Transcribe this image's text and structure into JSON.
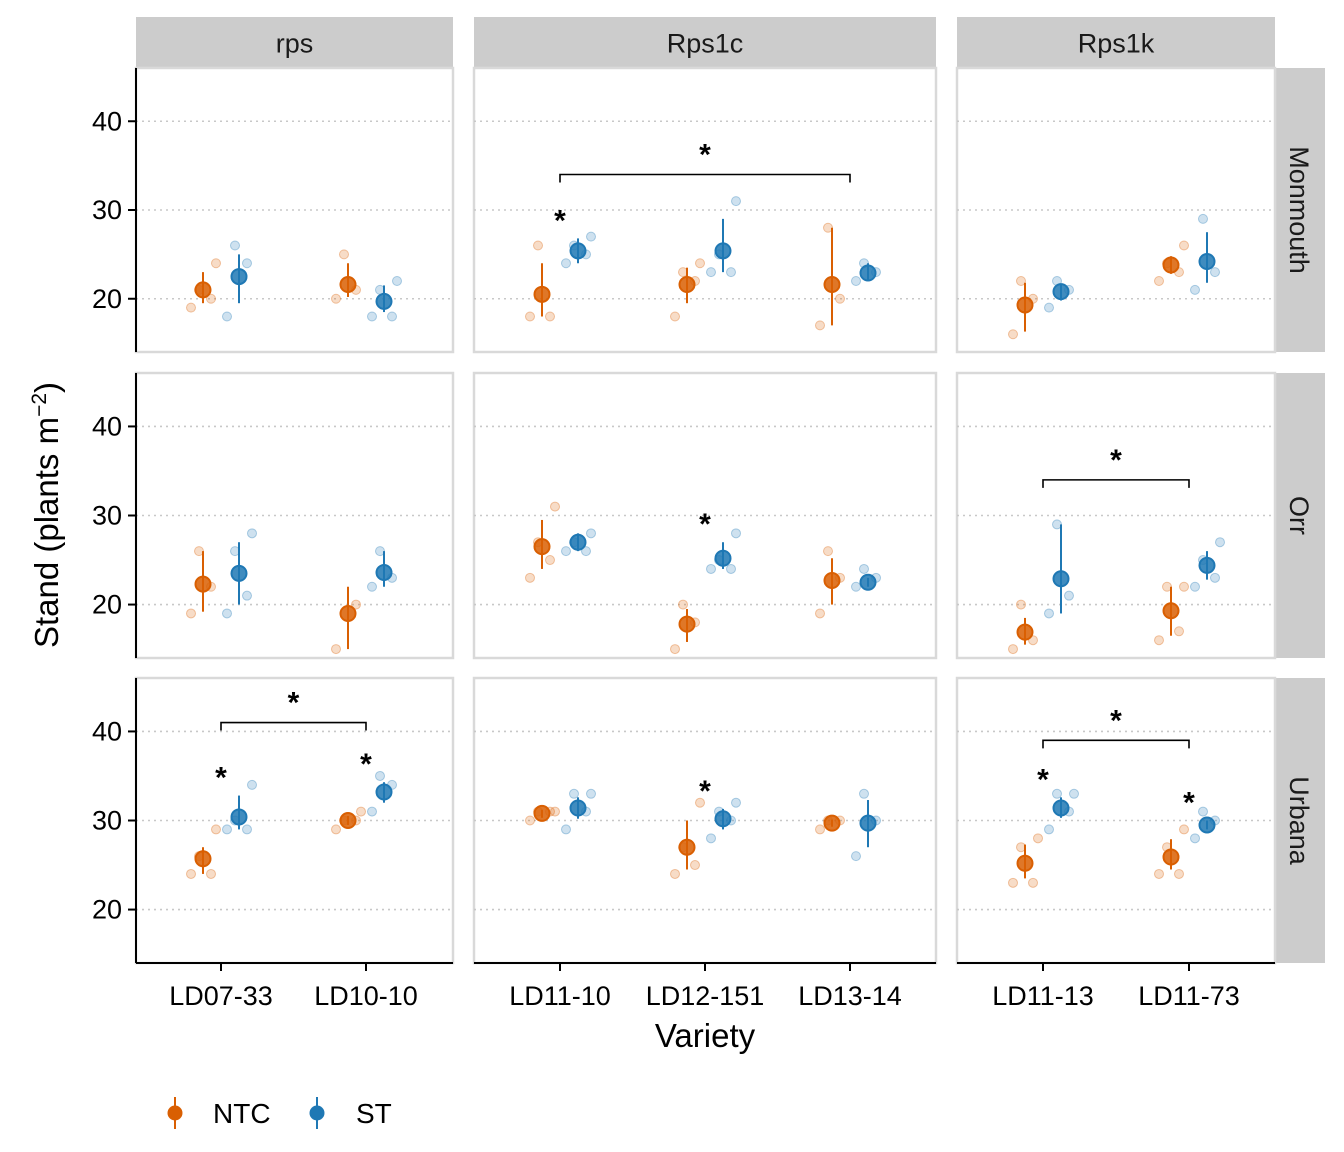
{
  "chart_data": {
    "type": "scatter",
    "xlabel": "Variety",
    "ylabel_main": "Stand (plants m",
    "ylabel_unit_sup": "−2",
    "ylabel_close": ")",
    "ylim": [
      14,
      46
    ],
    "yticks": [
      "20",
      "30",
      "40"
    ],
    "grid": "horizontal dotted at 20, 30, 40",
    "columns": [
      {
        "label": "rps",
        "varieties": [
          "LD07-33",
          "LD10-10"
        ]
      },
      {
        "label": "Rps1c",
        "varieties": [
          "LD11-10",
          "LD12-151",
          "LD13-14"
        ]
      },
      {
        "label": "Rps1k",
        "varieties": [
          "LD11-13",
          "LD11-73"
        ]
      }
    ],
    "rows": [
      "Monmouth",
      "Orr",
      "Urbana"
    ],
    "legend": {
      "placement": "bottom-left",
      "items": [
        {
          "key": "NTC",
          "label": "NTC",
          "color": "#D95F02"
        },
        {
          "key": "ST",
          "label": "ST",
          "color": "#1F78B4"
        }
      ]
    },
    "significance_marker": "*",
    "panels": [
      {
        "row": "Monmouth",
        "column": "rps",
        "groups": [
          {
            "variety": "LD07-33",
            "treatment": "NTC",
            "mean": 21.0,
            "lo": 19.5,
            "hi": 23.0,
            "raw": [
              19,
              20,
              21,
              24
            ],
            "star": false
          },
          {
            "variety": "LD07-33",
            "treatment": "ST",
            "mean": 22.5,
            "lo": 19.5,
            "hi": 25.0,
            "raw": [
              18,
              24,
              26
            ],
            "star": false
          },
          {
            "variety": "LD10-10",
            "treatment": "NTC",
            "mean": 21.6,
            "lo": 20.2,
            "hi": 24.0,
            "raw": [
              20,
              21,
              25
            ],
            "star": false
          },
          {
            "variety": "LD10-10",
            "treatment": "ST",
            "mean": 19.7,
            "lo": 18.5,
            "hi": 21.5,
            "raw": [
              18,
              18,
              21,
              22
            ],
            "star": false
          }
        ],
        "brackets": []
      },
      {
        "row": "Monmouth",
        "column": "Rps1c",
        "groups": [
          {
            "variety": "LD11-10",
            "treatment": "NTC",
            "mean": 20.5,
            "lo": 18.0,
            "hi": 24.0,
            "raw": [
              18,
              18,
              26
            ],
            "star": false
          },
          {
            "variety": "LD11-10",
            "treatment": "ST",
            "mean": 25.4,
            "lo": 24.0,
            "hi": 26.8,
            "raw": [
              24,
              25,
              26,
              27
            ],
            "star": true
          },
          {
            "variety": "LD12-151",
            "treatment": "NTC",
            "mean": 21.6,
            "lo": 19.5,
            "hi": 23.5,
            "raw": [
              18,
              22,
              23,
              24
            ],
            "star": false
          },
          {
            "variety": "LD12-151",
            "treatment": "ST",
            "mean": 25.4,
            "lo": 23.0,
            "hi": 29.0,
            "raw": [
              23,
              23,
              25,
              31
            ],
            "star": false
          },
          {
            "variety": "LD13-14",
            "treatment": "NTC",
            "mean": 21.6,
            "lo": 17.0,
            "hi": 28.0,
            "raw": [
              17,
              20,
              28
            ],
            "star": false
          },
          {
            "variety": "LD13-14",
            "treatment": "ST",
            "mean": 22.9,
            "lo": 22.0,
            "hi": 24.0,
            "raw": [
              22,
              23,
              24
            ],
            "star": false
          }
        ],
        "brackets": [
          {
            "from": "LD11-10",
            "to": "LD13-14",
            "y": 34.0
          }
        ]
      },
      {
        "row": "Monmouth",
        "column": "Rps1k",
        "groups": [
          {
            "variety": "LD11-13",
            "treatment": "NTC",
            "mean": 19.3,
            "lo": 16.3,
            "hi": 21.8,
            "raw": [
              16,
              20,
              22
            ],
            "star": false
          },
          {
            "variety": "LD11-13",
            "treatment": "ST",
            "mean": 20.8,
            "lo": 19.8,
            "hi": 21.6,
            "raw": [
              19,
              21,
              22
            ],
            "star": false
          },
          {
            "variety": "LD11-73",
            "treatment": "NTC",
            "mean": 23.8,
            "lo": 22.8,
            "hi": 24.8,
            "raw": [
              22,
              23,
              24,
              26
            ],
            "star": false
          },
          {
            "variety": "LD11-73",
            "treatment": "ST",
            "mean": 24.2,
            "lo": 21.8,
            "hi": 27.5,
            "raw": [
              21,
              23,
              29
            ],
            "star": false
          }
        ],
        "brackets": []
      },
      {
        "row": "Orr",
        "column": "rps",
        "groups": [
          {
            "variety": "LD07-33",
            "treatment": "NTC",
            "mean": 22.3,
            "lo": 19.2,
            "hi": 26.0,
            "raw": [
              19,
              22,
              26
            ],
            "star": false
          },
          {
            "variety": "LD07-33",
            "treatment": "ST",
            "mean": 23.5,
            "lo": 20.0,
            "hi": 27.0,
            "raw": [
              19,
              21,
              26,
              28
            ],
            "star": false
          },
          {
            "variety": "LD10-10",
            "treatment": "NTC",
            "mean": 19.0,
            "lo": 15.0,
            "hi": 22.0,
            "raw": [
              15,
              20
            ],
            "star": false
          },
          {
            "variety": "LD10-10",
            "treatment": "ST",
            "mean": 23.6,
            "lo": 22.0,
            "hi": 26.0,
            "raw": [
              22,
              23,
              26
            ],
            "star": false
          }
        ],
        "brackets": []
      },
      {
        "row": "Orr",
        "column": "Rps1c",
        "groups": [
          {
            "variety": "LD11-10",
            "treatment": "NTC",
            "mean": 26.5,
            "lo": 24.0,
            "hi": 29.5,
            "raw": [
              23,
              25,
              27,
              31
            ],
            "star": false
          },
          {
            "variety": "LD11-10",
            "treatment": "ST",
            "mean": 27.0,
            "lo": 26.0,
            "hi": 28.0,
            "raw": [
              26,
              26,
              27,
              28
            ],
            "star": false
          },
          {
            "variety": "LD12-151",
            "treatment": "NTC",
            "mean": 17.8,
            "lo": 15.8,
            "hi": 19.5,
            "raw": [
              15,
              18,
              20
            ],
            "star": false
          },
          {
            "variety": "LD12-151",
            "treatment": "ST",
            "mean": 25.2,
            "lo": 24.0,
            "hi": 27.0,
            "raw": [
              24,
              24,
              25,
              28
            ],
            "star": true
          },
          {
            "variety": "LD13-14",
            "treatment": "NTC",
            "mean": 22.7,
            "lo": 20.0,
            "hi": 25.2,
            "raw": [
              19,
              23,
              26
            ],
            "star": false
          },
          {
            "variety": "LD13-14",
            "treatment": "ST",
            "mean": 22.5,
            "lo": 22.0,
            "hi": 23.0,
            "raw": [
              22,
              23,
              24
            ],
            "star": false
          }
        ],
        "brackets": []
      },
      {
        "row": "Orr",
        "column": "Rps1k",
        "groups": [
          {
            "variety": "LD11-13",
            "treatment": "NTC",
            "mean": 16.9,
            "lo": 15.5,
            "hi": 18.5,
            "raw": [
              15,
              16,
              20
            ],
            "star": false
          },
          {
            "variety": "LD11-13",
            "treatment": "ST",
            "mean": 22.9,
            "lo": 19.0,
            "hi": 29.0,
            "raw": [
              19,
              21,
              29
            ],
            "star": false
          },
          {
            "variety": "LD11-73",
            "treatment": "NTC",
            "mean": 19.3,
            "lo": 16.5,
            "hi": 22.0,
            "raw": [
              16,
              17,
              22,
              22
            ],
            "star": false
          },
          {
            "variety": "LD11-73",
            "treatment": "ST",
            "mean": 24.4,
            "lo": 22.8,
            "hi": 26.0,
            "raw": [
              22,
              23,
              25,
              27
            ],
            "star": false
          }
        ],
        "brackets": [
          {
            "from": "LD11-13",
            "to": "LD11-73",
            "y": 34.0
          }
        ]
      },
      {
        "row": "Urbana",
        "column": "rps",
        "groups": [
          {
            "variety": "LD07-33",
            "treatment": "NTC",
            "mean": 25.7,
            "lo": 24.0,
            "hi": 27.0,
            "raw": [
              24,
              24,
              26,
              29
            ],
            "star": false
          },
          {
            "variety": "LD07-33",
            "treatment": "ST",
            "mean": 30.4,
            "lo": 29.0,
            "hi": 32.8,
            "raw": [
              29,
              29,
              30,
              34
            ],
            "star": true
          },
          {
            "variety": "LD10-10",
            "treatment": "NTC",
            "mean": 30.0,
            "lo": 29.5,
            "hi": 30.5,
            "raw": [
              29,
              30,
              30,
              31
            ],
            "star": false
          },
          {
            "variety": "LD10-10",
            "treatment": "ST",
            "mean": 33.2,
            "lo": 32.0,
            "hi": 34.3,
            "raw": [
              31,
              34,
              35
            ],
            "star": true
          }
        ],
        "brackets": [
          {
            "from": "LD07-33",
            "to": "LD10-10",
            "y": 41.0
          }
        ]
      },
      {
        "row": "Urbana",
        "column": "Rps1c",
        "groups": [
          {
            "variety": "LD11-10",
            "treatment": "NTC",
            "mean": 30.8,
            "lo": 30.3,
            "hi": 31.2,
            "raw": [
              30,
              31,
              31,
              31
            ],
            "star": false
          },
          {
            "variety": "LD11-10",
            "treatment": "ST",
            "mean": 31.4,
            "lo": 30.2,
            "hi": 32.6,
            "raw": [
              29,
              31,
              33,
              33
            ],
            "star": false
          },
          {
            "variety": "LD12-151",
            "treatment": "NTC",
            "mean": 27.0,
            "lo": 24.5,
            "hi": 30.0,
            "raw": [
              24,
              25,
              27,
              32
            ],
            "star": false
          },
          {
            "variety": "LD12-151",
            "treatment": "ST",
            "mean": 30.2,
            "lo": 29.0,
            "hi": 31.3,
            "raw": [
              28,
              30,
              31,
              32
            ],
            "star": true
          },
          {
            "variety": "LD13-14",
            "treatment": "NTC",
            "mean": 29.7,
            "lo": 29.3,
            "hi": 30.1,
            "raw": [
              29,
              30,
              30
            ],
            "star": false
          },
          {
            "variety": "LD13-14",
            "treatment": "ST",
            "mean": 29.7,
            "lo": 27.0,
            "hi": 32.3,
            "raw": [
              26,
              30,
              33
            ],
            "star": false
          }
        ],
        "brackets": []
      },
      {
        "row": "Urbana",
        "column": "Rps1k",
        "groups": [
          {
            "variety": "LD11-13",
            "treatment": "NTC",
            "mean": 25.2,
            "lo": 23.5,
            "hi": 27.3,
            "raw": [
              23,
              23,
              27,
              28
            ],
            "star": false
          },
          {
            "variety": "LD11-13",
            "treatment": "ST",
            "mean": 31.4,
            "lo": 30.3,
            "hi": 32.6,
            "raw": [
              29,
              31,
              33,
              33
            ],
            "star": true
          },
          {
            "variety": "LD11-73",
            "treatment": "NTC",
            "mean": 25.9,
            "lo": 24.5,
            "hi": 27.9,
            "raw": [
              24,
              24,
              27,
              29
            ],
            "star": false
          },
          {
            "variety": "LD11-73",
            "treatment": "ST",
            "mean": 29.5,
            "lo": 29.0,
            "hi": 30.0,
            "raw": [
              28,
              30,
              31
            ],
            "star": true
          }
        ],
        "brackets": [
          {
            "from": "LD11-13",
            "to": "LD11-73",
            "y": 39.0
          }
        ]
      }
    ]
  }
}
